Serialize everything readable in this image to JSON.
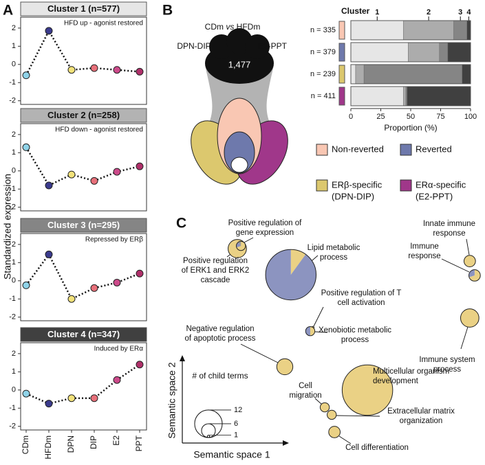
{
  "panel_labels": [
    "A",
    "B",
    "C"
  ],
  "venn": {
    "title": [
      "CDm",
      "vs",
      "HFDm"
    ],
    "left_label": "DPN-DIP",
    "right_label": "E2-PPT",
    "center_label": "1,477"
  },
  "venn_legend": [
    {
      "label": [
        "Non-reverted"
      ],
      "color": "#f9c7b3"
    },
    {
      "label": [
        "Reverted"
      ],
      "color": "#6e79ac"
    },
    {
      "label": [
        "ERβ-specific",
        "(DPN-DIP)"
      ],
      "color": "#dcc86e"
    },
    {
      "label": [
        "ERα-specific",
        "(E2-PPT)"
      ],
      "color": "#a0378a"
    }
  ],
  "chart_data": [
    {
      "type": "line",
      "title": "Cluster 1 (n=577)",
      "annotation": "HFD up - agonist restored",
      "ylabel": "Standardized expression",
      "title_color": "#e6e6e6",
      "title_text_color": "#111111",
      "values": [
        -0.6,
        1.85,
        -0.3,
        -0.2,
        -0.3,
        -0.4
      ],
      "point_colors": [
        "#8fd3e8",
        "#3b3b8e",
        "#f2e27a",
        "#e8707a",
        "#cc4a8a",
        "#b0306a"
      ],
      "ylim": [
        -2.2,
        2.6
      ],
      "yticks": [
        -2,
        -1,
        0,
        1,
        2
      ]
    },
    {
      "type": "line",
      "title": "Cluster 2 (n=258)",
      "annotation": "HFD down - agonist restored",
      "title_color": "#b3b3b3",
      "title_text_color": "#111111",
      "values": [
        1.3,
        -0.8,
        -0.2,
        -0.55,
        -0.05,
        0.25
      ],
      "point_colors": [
        "#8fd3e8",
        "#3b3b8e",
        "#f2e27a",
        "#e8707a",
        "#cc4a8a",
        "#b0306a"
      ],
      "ylim": [
        -2.2,
        2.6
      ],
      "yticks": [
        -2,
        -1,
        0,
        1,
        2
      ]
    },
    {
      "type": "line",
      "title": "Cluster 3 (n=295)",
      "annotation": "Repressed by ERβ",
      "title_color": "#858585",
      "title_text_color": "#ffffff",
      "values": [
        -0.25,
        1.45,
        -1.0,
        -0.4,
        -0.1,
        0.4
      ],
      "point_colors": [
        "#8fd3e8",
        "#3b3b8e",
        "#f2e27a",
        "#e8707a",
        "#cc4a8a",
        "#b0306a"
      ],
      "ylim": [
        -2.2,
        2.6
      ],
      "yticks": [
        -2,
        -1,
        0,
        1,
        2
      ]
    },
    {
      "type": "line",
      "title": "Cluster 4 (n=347)",
      "annotation": "Induced by ERα",
      "title_color": "#404040",
      "title_text_color": "#ffffff",
      "categories": [
        "CDm",
        "HFDm",
        "DPN",
        "DIP",
        "E2",
        "PPT"
      ],
      "values": [
        -0.2,
        -0.75,
        -0.45,
        -0.45,
        0.55,
        1.4
      ],
      "point_colors": [
        "#8fd3e8",
        "#3b3b8e",
        "#f2e27a",
        "#e8707a",
        "#cc4a8a",
        "#b0306a"
      ],
      "ylim": [
        -2.2,
        2.6
      ],
      "yticks": [
        -2,
        -1,
        0,
        1,
        2
      ]
    },
    {
      "type": "stacked-barh",
      "legend_title": "Cluster",
      "categories": [
        "n = 335",
        "n = 379",
        "n = 239",
        "n = 411"
      ],
      "category_colors": [
        "#f9c7b3",
        "#6e79ac",
        "#dcc86e",
        "#a0378a"
      ],
      "series": [
        {
          "name": "1",
          "color": "#e6e6e6",
          "values": [
            44,
            48,
            4,
            44
          ]
        },
        {
          "name": "2",
          "color": "#acacac",
          "values": [
            42,
            26,
            7,
            2
          ]
        },
        {
          "name": "3",
          "color": "#858585",
          "values": [
            11,
            7,
            82,
            1
          ]
        },
        {
          "name": "4",
          "color": "#404040",
          "values": [
            3,
            19,
            7,
            53
          ]
        }
      ],
      "xlim": [
        0,
        100
      ],
      "xticks": [
        0,
        25,
        50,
        75,
        100
      ],
      "xlabel": "Proportion (%)"
    },
    {
      "type": "bubble",
      "xlabel": "Semantic space 1",
      "ylabel": "Semantic space 2",
      "xlim": [
        0,
        100
      ],
      "ylim": [
        0,
        100
      ],
      "composition_colors": [
        "#ead185",
        "#8c94c0",
        "#9a9a9a"
      ],
      "size_legend": {
        "title": "# of child terms",
        "sizes": [
          12,
          6,
          1
        ]
      },
      "points": [
        {
          "label": [
            "Positive regulation",
            "of ERK1 and ERK2",
            "cascade"
          ],
          "x": 19.3,
          "y": 90.3,
          "size": 8,
          "composition": [
            100,
            0,
            0
          ]
        },
        {
          "label": [
            "Positive regulation of",
            "gene expression"
          ],
          "x": 20.5,
          "y": 91.5,
          "size": 4,
          "composition": [
            70,
            20,
            10
          ]
        },
        {
          "label": [
            "Lipid metabolic",
            "process"
          ],
          "x": 37.0,
          "y": 78.8,
          "size": 22,
          "composition": [
            10,
            90,
            0
          ]
        },
        {
          "label": [
            "Positive regulation of T",
            "cell activation"
          ],
          "x": 44.3,
          "y": 55.5,
          "size": 1,
          "composition": [
            100,
            0,
            0
          ]
        },
        {
          "label": [
            "Xenobiotic metabolic",
            "process"
          ],
          "x": 43.4,
          "y": 53.9,
          "size": 4,
          "composition": [
            50,
            50,
            0
          ]
        },
        {
          "label": [
            "Innate immune",
            "response"
          ],
          "x": 96.1,
          "y": 84.8,
          "size": 5,
          "composition": [
            100,
            0,
            0
          ]
        },
        {
          "label": [
            "Immune",
            "response"
          ],
          "x": 97.7,
          "y": 78.5,
          "size": 5,
          "composition": [
            70,
            30,
            0
          ]
        },
        {
          "label": [
            "Immune system",
            "process"
          ],
          "x": 96.1,
          "y": 59.7,
          "size": 8,
          "composition": [
            100,
            0,
            0
          ]
        },
        {
          "label": [
            "Negative regulation",
            "of apoptotic process"
          ],
          "x": 35.0,
          "y": 38.2,
          "size": 7,
          "composition": [
            100,
            0,
            0
          ]
        },
        {
          "label": [
            "Multicellular organism",
            "development"
          ],
          "x": 62.3,
          "y": 27.9,
          "size": 22,
          "composition": [
            100,
            0,
            0
          ]
        },
        {
          "label": [
            "Cell",
            "migration"
          ],
          "x": 48.2,
          "y": 20.3,
          "size": 4,
          "composition": [
            100,
            0,
            0
          ]
        },
        {
          "label": [
            "Extracellular matrix",
            "organization"
          ],
          "x": 50.5,
          "y": 17.0,
          "size": 4,
          "composition": [
            100,
            0,
            0
          ]
        },
        {
          "label": [
            "Cell differentiation"
          ],
          "x": 51.4,
          "y": 9.4,
          "size": 5,
          "composition": [
            100,
            0,
            0
          ]
        }
      ]
    }
  ]
}
